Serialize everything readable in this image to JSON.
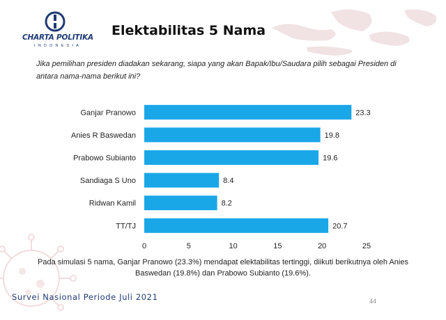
{
  "logo": {
    "name": "CHARTA POLITIKA",
    "sub": "INDONESIA"
  },
  "title": "Elektabilitas 5 Nama",
  "question": "Jika pemilihan presiden diadakan sekarang, siapa yang akan Bapak/Ibu/Saudara pilih sebagai Presiden di antara nama-nama berikut ini?",
  "summary_line1": "Pada simulasi 5 nama, Ganjar Pranowo (23.3%) mendapat elektabilitas tertinggi, diikuti berikutnya oleh Anies",
  "summary_line2": "Baswedan (19.8%) dan Prabowo Subianto (19.6%).",
  "footer": "Survei Nasional Periode Juli 2021",
  "page_number": "44",
  "colors": {
    "bar": "#1aa7e8",
    "brand": "#1f3a73"
  },
  "chart_data": {
    "type": "bar",
    "orientation": "horizontal",
    "title": "",
    "xlabel": "",
    "ylabel": "",
    "categories": [
      "Ganjar Pranowo",
      "Anies R Baswedan",
      "Prabowo Subianto",
      "Sandiaga S Uno",
      "Ridwan Kamil",
      "TT/TJ"
    ],
    "values": [
      23.3,
      19.8,
      19.6,
      8.4,
      8.2,
      20.7
    ],
    "value_labels": [
      "23.3",
      "19.8",
      "19.6",
      "8.4",
      "8.2",
      "20.7"
    ],
    "xlim": [
      0,
      25
    ],
    "ticks": [
      0,
      5,
      10,
      15,
      20,
      25
    ],
    "tick_labels": [
      "0",
      "5",
      "10",
      "15",
      "20",
      "25"
    ],
    "grid": false,
    "legend": "none"
  }
}
